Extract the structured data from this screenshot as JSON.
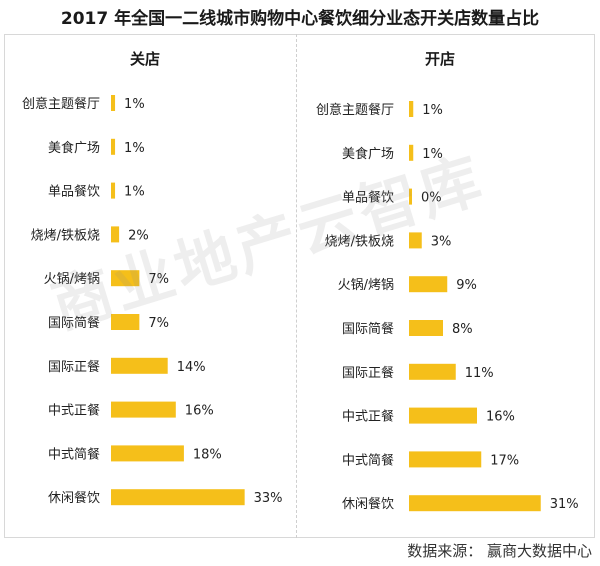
{
  "title": "2017 年全国一二线城市购物中心餐饮细分业态开关店数量占比",
  "source": "数据来源： 赢商大数据中心",
  "watermark": "商业地产云智库",
  "colors": {
    "bar": "#F5BF1A",
    "text": "#222222"
  },
  "chart_data": [
    {
      "type": "bar",
      "orientation": "horizontal",
      "title": "关店",
      "categories": [
        "创意主题餐厅",
        "美食广场",
        "单品餐饮",
        "烧烤/铁板烧",
        "火锅/烤锅",
        "国际简餐",
        "国际正餐",
        "中式正餐",
        "中式简餐",
        "休闲餐饮"
      ],
      "values": [
        1,
        1,
        1,
        2,
        7,
        7,
        14,
        16,
        18,
        33
      ],
      "value_labels": [
        "1%",
        "1%",
        "1%",
        "2%",
        "7%",
        "7%",
        "14%",
        "16%",
        "18%",
        "33%"
      ],
      "unit": "%"
    },
    {
      "type": "bar",
      "orientation": "horizontal",
      "title": "开店",
      "categories": [
        "创意主题餐厅",
        "美食广场",
        "单品餐饮",
        "烧烤/铁板烧",
        "火锅/烤锅",
        "国际简餐",
        "国际正餐",
        "中式正餐",
        "中式简餐",
        "休闲餐饮"
      ],
      "values": [
        1,
        1,
        0,
        3,
        9,
        8,
        11,
        16,
        17,
        31
      ],
      "value_labels": [
        "1%",
        "1%",
        "0%",
        "3%",
        "9%",
        "8%",
        "11%",
        "16%",
        "17%",
        "31%"
      ],
      "unit": "%"
    }
  ]
}
